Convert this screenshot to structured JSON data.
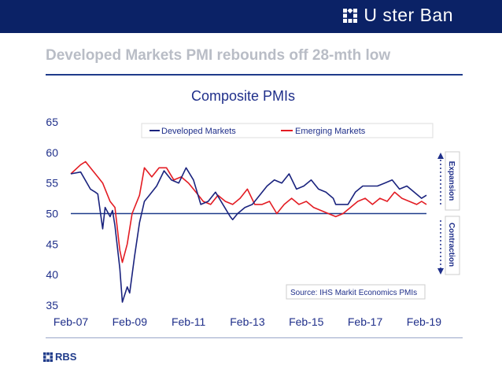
{
  "header": {
    "brand": "U ster Ban",
    "brand_logo": "ulster-bank-logo"
  },
  "slide": {
    "title": "Developed Markets PMI rebounds off 28-mth low"
  },
  "footer": {
    "logo_text": "RBS",
    "logo_icon": "rbs-logo"
  },
  "colors": {
    "banner": "#0b2266",
    "developed": "#1a237e",
    "emerging": "#e31c23",
    "reference": "#1f3b8a"
  },
  "chart_data": {
    "type": "line",
    "title": "Composite PMIs",
    "xlabel": "",
    "ylabel": "",
    "ylim": [
      35,
      65
    ],
    "yticks": [
      35,
      40,
      45,
      50,
      55,
      60,
      65
    ],
    "x_tick_labels": [
      "Feb-07",
      "Feb-09",
      "Feb-11",
      "Feb-13",
      "Feb-15",
      "Feb-17",
      "Feb-19"
    ],
    "x_start": "Feb-07",
    "x_end": "Mar-19",
    "grid": false,
    "legend_position": "top",
    "reference_line": 50,
    "annotations": {
      "expansion": "Expansion",
      "contraction": "Contraction",
      "source": "Source: IHS Markit Economics PMIs"
    },
    "series": [
      {
        "name": "Developed Markets",
        "points": [
          [
            "Feb-07",
            56.5
          ],
          [
            "Jun-07",
            56.8
          ],
          [
            "Oct-07",
            54.0
          ],
          [
            "Dec-07",
            53.5
          ],
          [
            "Jan-08",
            53.2
          ],
          [
            "Mar-08",
            47.5
          ],
          [
            "Apr-08",
            51.0
          ],
          [
            "Jun-08",
            49.5
          ],
          [
            "Jul-08",
            50.5
          ],
          [
            "Aug-08",
            48.0
          ],
          [
            "Oct-08",
            41.0
          ],
          [
            "Nov-08",
            35.5
          ],
          [
            "Jan-09",
            38.0
          ],
          [
            "Feb-09",
            37.0
          ],
          [
            "Apr-09",
            43.0
          ],
          [
            "Jun-09",
            48.5
          ],
          [
            "Aug-09",
            52.0
          ],
          [
            "Oct-09",
            53.0
          ],
          [
            "Jan-10",
            54.5
          ],
          [
            "Apr-10",
            57.0
          ],
          [
            "Jul-10",
            55.5
          ],
          [
            "Oct-10",
            55.0
          ],
          [
            "Jan-11",
            57.5
          ],
          [
            "Apr-11",
            55.5
          ],
          [
            "Jul-11",
            51.5
          ],
          [
            "Oct-11",
            52.0
          ],
          [
            "Jan-12",
            53.5
          ],
          [
            "Apr-12",
            51.5
          ],
          [
            "Jul-12",
            49.5
          ],
          [
            "Aug-12",
            49.0
          ],
          [
            "Oct-12",
            50.0
          ],
          [
            "Jan-13",
            51.0
          ],
          [
            "Apr-13",
            51.5
          ],
          [
            "Jul-13",
            53.0
          ],
          [
            "Oct-13",
            54.5
          ],
          [
            "Jan-14",
            55.5
          ],
          [
            "Apr-14",
            55.0
          ],
          [
            "Jul-14",
            56.5
          ],
          [
            "Oct-14",
            54.0
          ],
          [
            "Jan-15",
            54.5
          ],
          [
            "Apr-15",
            55.5
          ],
          [
            "Jul-15",
            54.0
          ],
          [
            "Oct-15",
            53.5
          ],
          [
            "Jan-16",
            52.5
          ],
          [
            "Feb-16",
            51.5
          ],
          [
            "Apr-16",
            51.5
          ],
          [
            "Jul-16",
            51.5
          ],
          [
            "Oct-16",
            53.5
          ],
          [
            "Jan-17",
            54.5
          ],
          [
            "Apr-17",
            54.5
          ],
          [
            "Jul-17",
            54.5
          ],
          [
            "Oct-17",
            55.0
          ],
          [
            "Jan-18",
            55.5
          ],
          [
            "Apr-18",
            54.0
          ],
          [
            "Jul-18",
            54.5
          ],
          [
            "Oct-18",
            53.5
          ],
          [
            "Jan-19",
            52.5
          ],
          [
            "Mar-19",
            53.0
          ]
        ]
      },
      {
        "name": "Emerging Markets",
        "points": [
          [
            "Feb-07",
            56.5
          ],
          [
            "Jun-07",
            58.0
          ],
          [
            "Aug-07",
            58.5
          ],
          [
            "Oct-07",
            57.5
          ],
          [
            "Jan-08",
            56.0
          ],
          [
            "Mar-08",
            55.0
          ],
          [
            "Jun-08",
            52.0
          ],
          [
            "Aug-08",
            51.0
          ],
          [
            "Oct-08",
            44.0
          ],
          [
            "Nov-08",
            42.0
          ],
          [
            "Jan-09",
            45.0
          ],
          [
            "Mar-09",
            50.0
          ],
          [
            "Jun-09",
            53.0
          ],
          [
            "Aug-09",
            57.5
          ],
          [
            "Nov-09",
            56.0
          ],
          [
            "Feb-10",
            57.5
          ],
          [
            "May-10",
            57.5
          ],
          [
            "Aug-10",
            55.5
          ],
          [
            "Nov-10",
            56.0
          ],
          [
            "Feb-11",
            55.0
          ],
          [
            "May-11",
            53.5
          ],
          [
            "Aug-11",
            52.0
          ],
          [
            "Nov-11",
            51.5
          ],
          [
            "Feb-12",
            53.0
          ],
          [
            "May-12",
            52.0
          ],
          [
            "Aug-12",
            51.5
          ],
          [
            "Nov-12",
            52.5
          ],
          [
            "Feb-13",
            54.0
          ],
          [
            "May-13",
            51.5
          ],
          [
            "Aug-13",
            51.5
          ],
          [
            "Nov-13",
            52.0
          ],
          [
            "Feb-14",
            50.0
          ],
          [
            "May-14",
            51.5
          ],
          [
            "Aug-14",
            52.5
          ],
          [
            "Nov-14",
            51.5
          ],
          [
            "Feb-15",
            52.0
          ],
          [
            "May-15",
            51.0
          ],
          [
            "Aug-15",
            50.5
          ],
          [
            "Nov-15",
            50.0
          ],
          [
            "Feb-16",
            49.5
          ],
          [
            "May-16",
            50.0
          ],
          [
            "Aug-16",
            51.0
          ],
          [
            "Nov-16",
            52.0
          ],
          [
            "Feb-17",
            52.5
          ],
          [
            "May-17",
            51.5
          ],
          [
            "Aug-17",
            52.5
          ],
          [
            "Nov-17",
            52.0
          ],
          [
            "Feb-18",
            53.5
          ],
          [
            "May-18",
            52.5
          ],
          [
            "Aug-18",
            52.0
          ],
          [
            "Nov-18",
            51.5
          ],
          [
            "Jan-19",
            52.0
          ],
          [
            "Mar-19",
            51.5
          ]
        ]
      }
    ]
  }
}
